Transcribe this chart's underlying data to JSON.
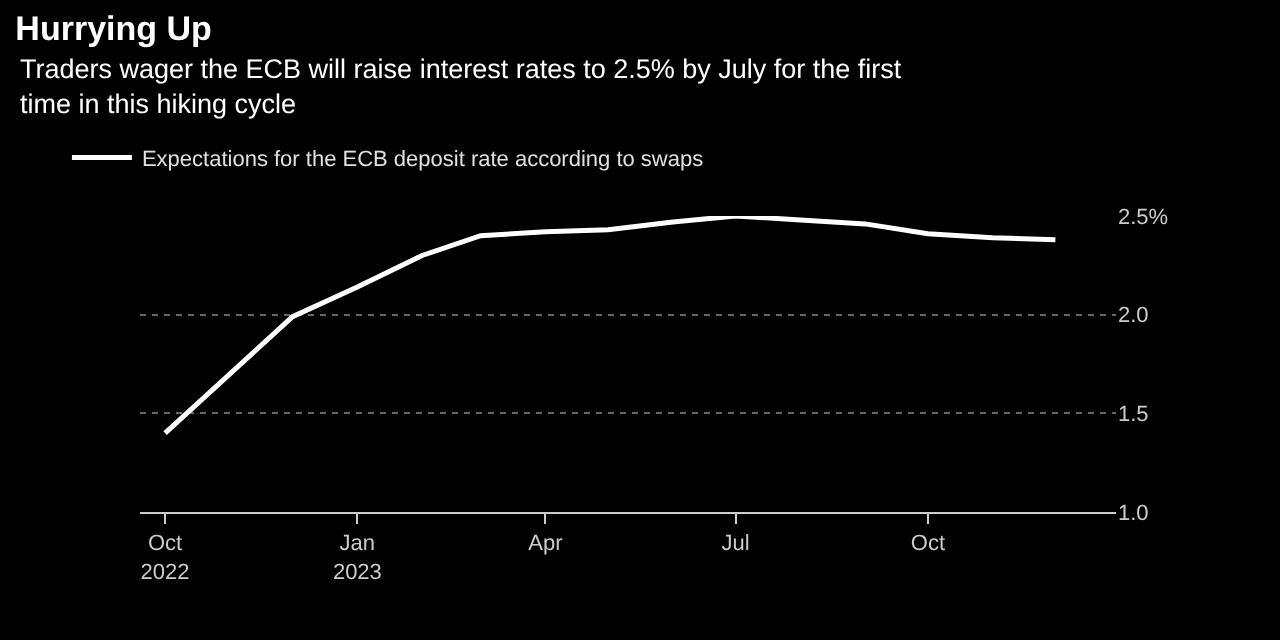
{
  "chart_data": {
    "type": "line",
    "title": "Hurrying Up",
    "subtitle": "Traders wager the ECB will raise interest rates to 2.5% by July for the first time in this hiking cycle",
    "x": [
      "2022-10-01",
      "2022-12-01",
      "2023-01-01",
      "2023-02-01",
      "2023-03-01",
      "2023-04-01",
      "2023-05-01",
      "2023-06-01",
      "2023-07-01",
      "2023-08-01",
      "2023-09-01",
      "2023-10-01",
      "2023-11-01",
      "2023-12-01"
    ],
    "series": [
      {
        "name": "Expectations for the ECB deposit rate according to swaps",
        "color": "#ffffff",
        "values": [
          1.4,
          1.99,
          2.14,
          2.3,
          2.4,
          2.42,
          2.43,
          2.47,
          2.5,
          2.48,
          2.46,
          2.41,
          2.39,
          2.38
        ]
      }
    ],
    "xlim": [
      "2022-09-19",
      "2023-12-30"
    ],
    "xticks": [
      {
        "value": "2022-10-01",
        "label": "Oct\n2022"
      },
      {
        "value": "2023-01-01",
        "label": "Jan\n2023"
      },
      {
        "value": "2023-04-01",
        "label": "Apr"
      },
      {
        "value": "2023-07-01",
        "label": "Jul"
      },
      {
        "value": "2023-10-01",
        "label": "Oct"
      }
    ],
    "ylim": [
      1.0,
      2.5
    ],
    "yticks": [
      {
        "value": 1.0,
        "label": "1.0"
      },
      {
        "value": 1.5,
        "label": "1.5"
      },
      {
        "value": 2.0,
        "label": "2.0"
      },
      {
        "value": 2.5,
        "label": "2.5%"
      }
    ],
    "grid": "y",
    "legend": "top left",
    "marker": "none",
    "line_style": "solid"
  }
}
